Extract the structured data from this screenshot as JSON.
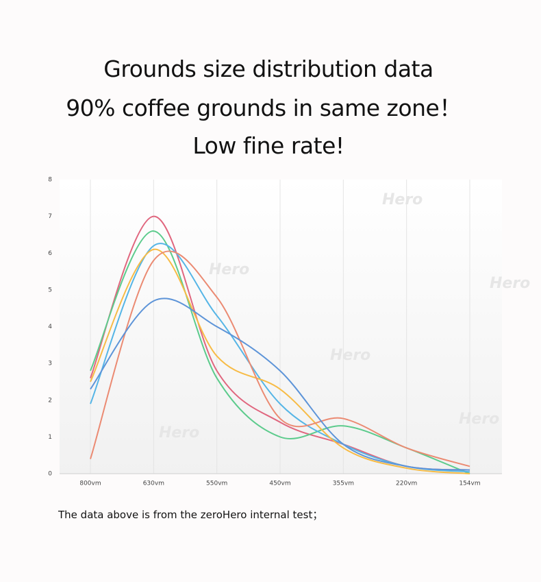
{
  "chart_data": {
    "type": "line",
    "title_lines": [
      "Grounds size distribution data",
      "90% coffee grounds in same zone！",
      "Low fine rate!"
    ],
    "categories": [
      "800vm",
      "630vm",
      "550vm",
      "450vm",
      "355vm",
      "220vm",
      "154vm"
    ],
    "series": [
      {
        "color": "#e0667e",
        "values": [
          2.6,
          7.0,
          2.8,
          1.4,
          0.8,
          0.2,
          0.1
        ]
      },
      {
        "color": "#5ccb8c",
        "values": [
          2.8,
          6.6,
          2.6,
          1.0,
          1.3,
          0.7,
          0.0
        ]
      },
      {
        "color": "#55b5e6",
        "values": [
          1.9,
          6.2,
          4.3,
          1.9,
          0.8,
          0.2,
          0.05
        ]
      },
      {
        "color": "#f7bb45",
        "values": [
          2.5,
          6.1,
          3.2,
          2.3,
          0.7,
          0.15,
          0.0
        ]
      },
      {
        "color": "#eb8a72",
        "values": [
          0.4,
          5.8,
          4.8,
          1.5,
          1.5,
          0.7,
          0.2
        ]
      },
      {
        "color": "#5d94d8",
        "values": [
          2.3,
          4.7,
          4.0,
          2.8,
          0.8,
          0.2,
          0.1
        ]
      }
    ],
    "ylim": [
      0,
      8
    ],
    "yticks": [
      0,
      1,
      2,
      3,
      4,
      5,
      6,
      7,
      8
    ],
    "grid": true,
    "watermark": "Hero",
    "footnote": "The data above is from the zeroHero internal test；"
  }
}
